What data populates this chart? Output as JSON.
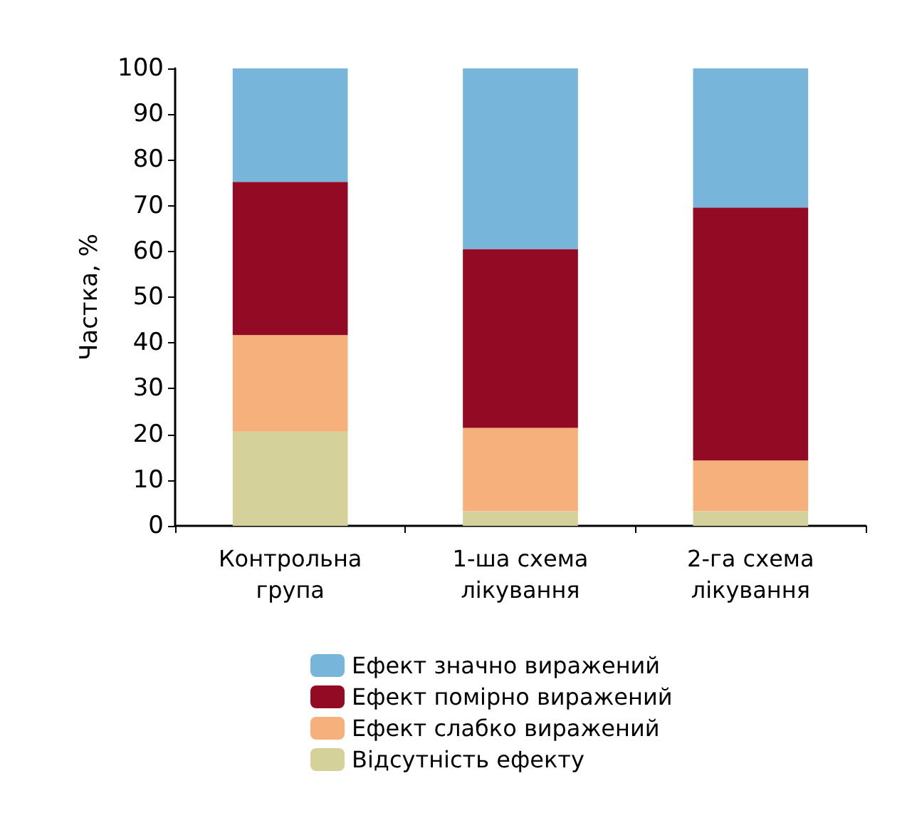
{
  "chart_data": {
    "type": "bar",
    "stacked": true,
    "ylabel": "Частка, %",
    "categories": [
      "Контрольна\nгрупа",
      "1-ша схема\nлікування",
      "2-га схема\nлікування"
    ],
    "series": [
      {
        "name": "Відсутність ефекту",
        "color": "#d4d19b",
        "values": [
          20.6,
          3.2,
          3.2
        ]
      },
      {
        "name": "Ефект слабко виражений",
        "color": "#f5b07c",
        "values": [
          21.1,
          18.2,
          11.1
        ]
      },
      {
        "name": "Ефект помірно виражений",
        "color": "#930a25",
        "values": [
          33.5,
          39.1,
          55.3
        ]
      },
      {
        "name": "Ефект значно виражений",
        "color": "#78b5da",
        "values": [
          24.8,
          39.5,
          30.4
        ]
      }
    ],
    "ylim": [
      0,
      100
    ],
    "yticks": [
      0,
      10,
      20,
      30,
      40,
      50,
      60,
      70,
      80,
      90,
      100
    ],
    "grid": false,
    "legend": "bottom"
  }
}
